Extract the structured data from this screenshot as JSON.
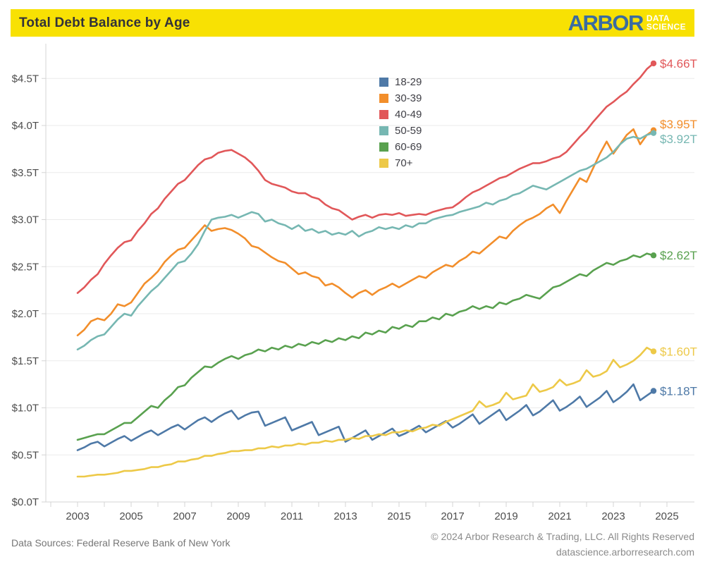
{
  "header": {
    "title": "Total Debt Balance by Age",
    "logo": {
      "brand": "ARBOR",
      "sub_top": "DATA",
      "sub_bottom": "SCIENCE"
    }
  },
  "footer": {
    "left": "Data Sources: Federal Reserve Bank of New York",
    "right_line1": "© 2024 Arbor Research & Trading, LLC. All Rights Reserved",
    "right_line2": "datascience.arborresearch.com"
  },
  "colors": {
    "header_bg": "#F8E103",
    "logo_blue": "#3A6CA0",
    "axis": "#d4d4d4",
    "grid": "#ebebeb",
    "tick_text": "#4d4d4d"
  },
  "chart_data": {
    "type": "line",
    "title": "Total Debt Balance by Age",
    "xlabel": "",
    "ylabel": "",
    "x_unit": "quarterly",
    "x_start": 2003.0,
    "x_step": 0.25,
    "xlim": [
      2001.8,
      2026.0
    ],
    "ylim": [
      0,
      4.75
    ],
    "grid": "horizontal",
    "legend_position": "top-center",
    "y_ticks": [
      "$0.0T",
      "$0.5T",
      "$1.0T",
      "$1.5T",
      "$2.0T",
      "$2.5T",
      "$3.0T",
      "$3.5T",
      "$4.0T",
      "$4.5T"
    ],
    "x_tick_labels": [
      "2003",
      "2005",
      "2007",
      "2009",
      "2011",
      "2013",
      "2015",
      "2017",
      "2019",
      "2021",
      "2023",
      "2025"
    ],
    "minor_year_ticks": [
      2002,
      2003,
      2004,
      2005,
      2006,
      2007,
      2008,
      2009,
      2010,
      2011,
      2012,
      2013,
      2014,
      2015,
      2016,
      2017,
      2018,
      2019,
      2020,
      2021,
      2022,
      2023,
      2024,
      2025
    ],
    "series": [
      {
        "name": "18-29",
        "color": "#4E79A7",
        "end_label": "$1.18T",
        "values": [
          0.55,
          0.58,
          0.62,
          0.64,
          0.59,
          0.63,
          0.67,
          0.7,
          0.65,
          0.69,
          0.73,
          0.76,
          0.71,
          0.75,
          0.79,
          0.82,
          0.77,
          0.82,
          0.87,
          0.9,
          0.85,
          0.9,
          0.94,
          0.97,
          0.88,
          0.92,
          0.95,
          0.96,
          0.81,
          0.84,
          0.87,
          0.9,
          0.76,
          0.79,
          0.82,
          0.85,
          0.71,
          0.74,
          0.77,
          0.8,
          0.64,
          0.68,
          0.72,
          0.76,
          0.66,
          0.7,
          0.74,
          0.78,
          0.7,
          0.73,
          0.77,
          0.81,
          0.74,
          0.78,
          0.82,
          0.86,
          0.79,
          0.83,
          0.88,
          0.93,
          0.83,
          0.88,
          0.93,
          0.98,
          0.87,
          0.92,
          0.97,
          1.03,
          0.92,
          0.96,
          1.02,
          1.08,
          0.97,
          1.01,
          1.06,
          1.12,
          1.01,
          1.06,
          1.11,
          1.18,
          1.06,
          1.11,
          1.17,
          1.25,
          1.08,
          1.13,
          1.18
        ]
      },
      {
        "name": "30-39",
        "color": "#F28E2B",
        "end_label": "$3.95T",
        "values": [
          1.77,
          1.83,
          1.92,
          1.95,
          1.93,
          2.0,
          2.1,
          2.08,
          2.12,
          2.22,
          2.32,
          2.38,
          2.45,
          2.55,
          2.62,
          2.68,
          2.7,
          2.78,
          2.86,
          2.94,
          2.88,
          2.9,
          2.91,
          2.89,
          2.85,
          2.8,
          2.72,
          2.7,
          2.65,
          2.6,
          2.56,
          2.54,
          2.48,
          2.42,
          2.44,
          2.4,
          2.38,
          2.3,
          2.32,
          2.28,
          2.22,
          2.17,
          2.22,
          2.25,
          2.2,
          2.25,
          2.28,
          2.32,
          2.28,
          2.32,
          2.36,
          2.4,
          2.38,
          2.44,
          2.48,
          2.52,
          2.5,
          2.56,
          2.6,
          2.66,
          2.64,
          2.7,
          2.76,
          2.82,
          2.8,
          2.88,
          2.94,
          2.99,
          3.02,
          3.06,
          3.12,
          3.16,
          3.07,
          3.2,
          3.32,
          3.44,
          3.4,
          3.55,
          3.7,
          3.83,
          3.7,
          3.8,
          3.9,
          3.96,
          3.8,
          3.9,
          3.95
        ]
      },
      {
        "name": "40-49",
        "color": "#E15759",
        "end_label": "$4.66T",
        "values": [
          2.22,
          2.28,
          2.36,
          2.42,
          2.53,
          2.62,
          2.7,
          2.76,
          2.78,
          2.88,
          2.96,
          3.06,
          3.12,
          3.22,
          3.3,
          3.38,
          3.42,
          3.5,
          3.58,
          3.64,
          3.66,
          3.71,
          3.73,
          3.74,
          3.7,
          3.66,
          3.6,
          3.52,
          3.42,
          3.38,
          3.36,
          3.34,
          3.3,
          3.28,
          3.28,
          3.24,
          3.22,
          3.16,
          3.12,
          3.1,
          3.05,
          3.0,
          3.03,
          3.05,
          3.02,
          3.05,
          3.06,
          3.05,
          3.07,
          3.04,
          3.05,
          3.06,
          3.05,
          3.08,
          3.1,
          3.12,
          3.13,
          3.18,
          3.24,
          3.29,
          3.32,
          3.36,
          3.4,
          3.44,
          3.46,
          3.5,
          3.54,
          3.57,
          3.6,
          3.6,
          3.62,
          3.65,
          3.67,
          3.72,
          3.8,
          3.88,
          3.95,
          4.04,
          4.12,
          4.2,
          4.25,
          4.31,
          4.36,
          4.44,
          4.51,
          4.6,
          4.66
        ]
      },
      {
        "name": "50-59",
        "color": "#76B7B2",
        "end_label": "$3.92T",
        "values": [
          1.62,
          1.66,
          1.72,
          1.76,
          1.78,
          1.86,
          1.94,
          2.0,
          1.98,
          2.08,
          2.16,
          2.24,
          2.3,
          2.38,
          2.46,
          2.54,
          2.56,
          2.64,
          2.74,
          2.88,
          3.0,
          3.02,
          3.03,
          3.05,
          3.02,
          3.05,
          3.08,
          3.06,
          2.98,
          3.0,
          2.96,
          2.94,
          2.9,
          2.94,
          2.88,
          2.9,
          2.86,
          2.88,
          2.84,
          2.86,
          2.84,
          2.88,
          2.82,
          2.86,
          2.88,
          2.92,
          2.9,
          2.92,
          2.9,
          2.94,
          2.92,
          2.96,
          2.96,
          3.0,
          3.02,
          3.04,
          3.05,
          3.08,
          3.1,
          3.12,
          3.14,
          3.18,
          3.16,
          3.2,
          3.22,
          3.26,
          3.28,
          3.32,
          3.36,
          3.34,
          3.32,
          3.36,
          3.4,
          3.44,
          3.48,
          3.52,
          3.54,
          3.58,
          3.62,
          3.66,
          3.72,
          3.8,
          3.86,
          3.88,
          3.86,
          3.9,
          3.92
        ]
      },
      {
        "name": "60-69",
        "color": "#59A14F",
        "end_label": "$2.62T",
        "values": [
          0.66,
          0.68,
          0.7,
          0.72,
          0.72,
          0.76,
          0.8,
          0.84,
          0.84,
          0.9,
          0.96,
          1.02,
          1.0,
          1.08,
          1.14,
          1.22,
          1.24,
          1.32,
          1.38,
          1.44,
          1.43,
          1.48,
          1.52,
          1.55,
          1.52,
          1.56,
          1.58,
          1.62,
          1.6,
          1.64,
          1.62,
          1.66,
          1.64,
          1.68,
          1.66,
          1.7,
          1.68,
          1.72,
          1.7,
          1.74,
          1.72,
          1.76,
          1.74,
          1.8,
          1.78,
          1.82,
          1.8,
          1.86,
          1.84,
          1.88,
          1.86,
          1.92,
          1.92,
          1.96,
          1.94,
          2.0,
          1.98,
          2.02,
          2.04,
          2.08,
          2.05,
          2.08,
          2.06,
          2.12,
          2.1,
          2.14,
          2.16,
          2.2,
          2.18,
          2.16,
          2.22,
          2.28,
          2.3,
          2.34,
          2.38,
          2.42,
          2.4,
          2.46,
          2.5,
          2.54,
          2.52,
          2.56,
          2.58,
          2.62,
          2.6,
          2.64,
          2.62
        ]
      },
      {
        "name": "70+",
        "color": "#EDC948",
        "end_label": "$1.60T",
        "values": [
          0.27,
          0.27,
          0.28,
          0.29,
          0.29,
          0.3,
          0.31,
          0.33,
          0.33,
          0.34,
          0.35,
          0.37,
          0.37,
          0.39,
          0.4,
          0.43,
          0.43,
          0.45,
          0.46,
          0.49,
          0.49,
          0.51,
          0.52,
          0.54,
          0.54,
          0.55,
          0.55,
          0.57,
          0.57,
          0.59,
          0.58,
          0.6,
          0.6,
          0.62,
          0.61,
          0.63,
          0.63,
          0.65,
          0.64,
          0.66,
          0.66,
          0.68,
          0.67,
          0.7,
          0.7,
          0.72,
          0.71,
          0.74,
          0.74,
          0.76,
          0.75,
          0.78,
          0.79,
          0.82,
          0.81,
          0.85,
          0.88,
          0.91,
          0.94,
          0.97,
          1.07,
          1.01,
          1.03,
          1.06,
          1.16,
          1.09,
          1.11,
          1.13,
          1.25,
          1.17,
          1.19,
          1.22,
          1.3,
          1.24,
          1.26,
          1.29,
          1.4,
          1.33,
          1.35,
          1.39,
          1.51,
          1.43,
          1.46,
          1.5,
          1.56,
          1.64,
          1.6
        ]
      }
    ]
  }
}
